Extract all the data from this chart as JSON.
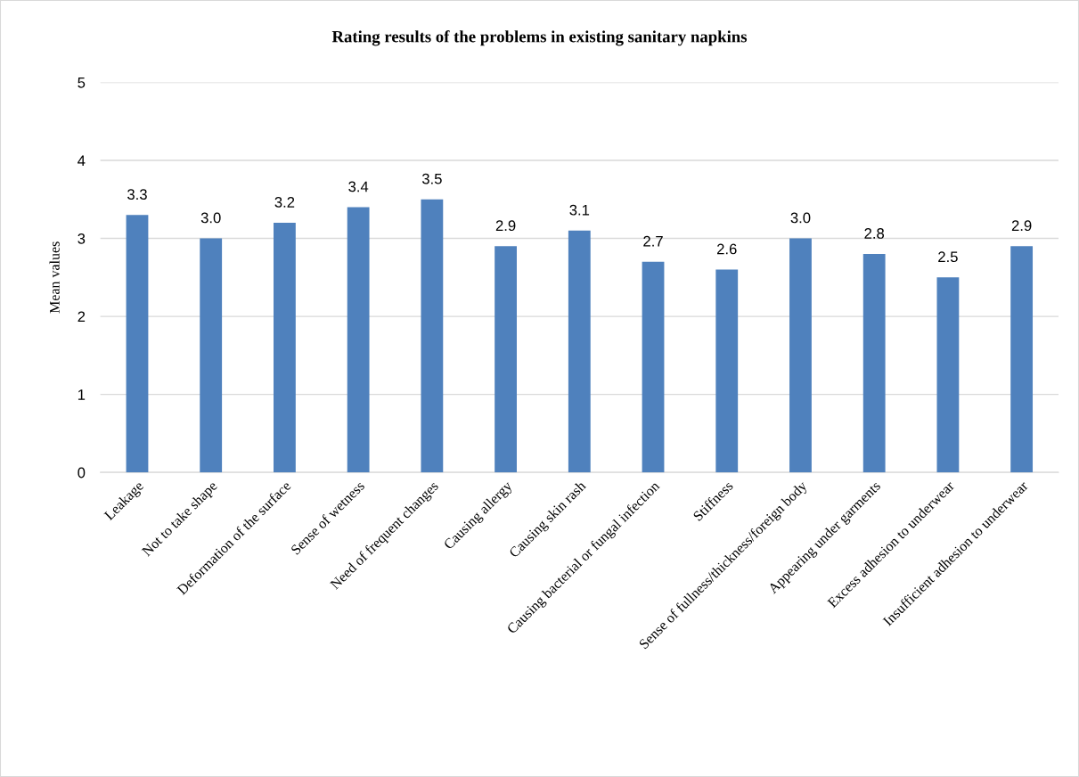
{
  "chart_data": {
    "type": "bar",
    "title": "Rating results of the problems in existing sanitary napkins",
    "ylabel": "Mean values",
    "categories": [
      "Leakage",
      "Not to take shape",
      "Deformation of the surface",
      "Sense of wetness",
      "Need of frequent changes",
      "Causing allergy",
      "Causing skin rash",
      "Causing bacterial or fungal infection",
      "Stiffness",
      "Sense of fullness/thickness/foreign body",
      "Appearing under garments",
      "Excess adhesion to underwear",
      "Insufficient adhesion to underwear"
    ],
    "values": [
      3.3,
      3.0,
      3.2,
      3.4,
      3.5,
      2.9,
      3.1,
      2.7,
      2.6,
      3.0,
      2.8,
      2.5,
      2.9
    ],
    "value_labels": [
      "3.3",
      "3.0",
      "3.2",
      "3.4",
      "3.5",
      "2.9",
      "3.1",
      "2.7",
      "2.6",
      "3.0",
      "2.8",
      "2.5",
      "2.9"
    ],
    "color": "#4f81bd",
    "ylim": [
      0,
      5
    ],
    "yticks": [
      0,
      1,
      2,
      3,
      4,
      5
    ],
    "grid": "y"
  }
}
